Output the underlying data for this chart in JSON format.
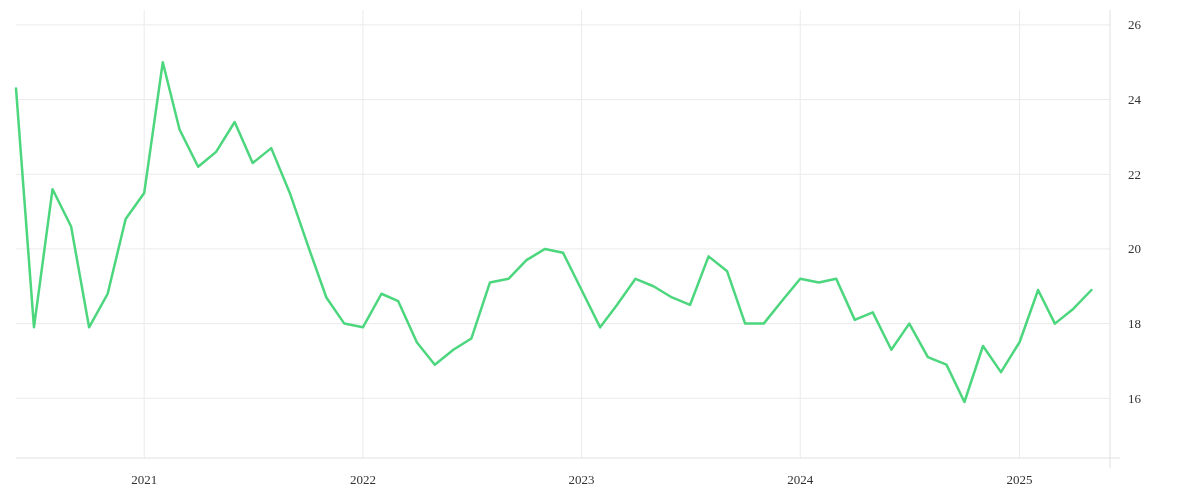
{
  "chart_data": {
    "type": "line",
    "x": [
      "2020-06",
      "2020-07",
      "2020-08",
      "2020-09",
      "2020-10",
      "2020-11",
      "2020-12",
      "2021-01",
      "2021-02",
      "2021-03",
      "2021-04",
      "2021-05",
      "2021-06",
      "2021-07",
      "2021-08",
      "2021-09",
      "2021-10",
      "2021-11",
      "2021-12",
      "2022-01",
      "2022-02",
      "2022-03",
      "2022-04",
      "2022-05",
      "2022-06",
      "2022-07",
      "2022-08",
      "2022-09",
      "2022-10",
      "2022-11",
      "2022-12",
      "2023-01",
      "2023-02",
      "2023-03",
      "2023-04",
      "2023-05",
      "2023-06",
      "2023-07",
      "2023-08",
      "2023-09",
      "2023-10",
      "2023-11",
      "2023-12",
      "2024-01",
      "2024-02",
      "2024-03",
      "2024-04",
      "2024-05",
      "2024-06",
      "2024-07",
      "2024-08",
      "2024-09",
      "2024-10",
      "2024-11",
      "2024-12",
      "2025-01",
      "2025-02",
      "2025-03",
      "2025-04",
      "2025-05"
    ],
    "series": [
      {
        "color": "#4cd67d",
        "values": [
          24.3,
          17.9,
          21.6,
          20.6,
          17.9,
          18.8,
          20.8,
          21.5,
          25.0,
          23.2,
          22.2,
          22.6,
          23.4,
          22.3,
          22.7,
          21.5,
          20.1,
          18.7,
          18.0,
          17.9,
          18.8,
          18.6,
          17.5,
          16.9,
          17.3,
          17.6,
          19.1,
          19.2,
          19.7,
          20.0,
          19.9,
          18.9,
          17.9,
          18.5,
          19.2,
          19.0,
          18.7,
          18.5,
          19.8,
          19.4,
          18.0,
          18.0,
          18.6,
          19.2,
          19.1,
          19.2,
          18.1,
          18.3,
          17.3,
          18.0,
          17.1,
          16.9,
          15.9,
          17.4,
          16.7,
          17.5,
          18.9,
          18.0,
          18.4,
          18.9
        ]
      }
    ],
    "xlim": [
      "2020-06",
      "2025-06"
    ],
    "xticks": [
      {
        "value": "2021",
        "label": "2021"
      },
      {
        "value": "2022",
        "label": "2022"
      },
      {
        "value": "2023",
        "label": "2023"
      },
      {
        "value": "2024",
        "label": "2024"
      },
      {
        "value": "2025",
        "label": "2025"
      }
    ],
    "ylim": [
      14.4,
      26.4
    ],
    "yticks": [
      16,
      18,
      20,
      22,
      24,
      26
    ],
    "grid": true,
    "line_style": "solid",
    "marker": "none"
  }
}
